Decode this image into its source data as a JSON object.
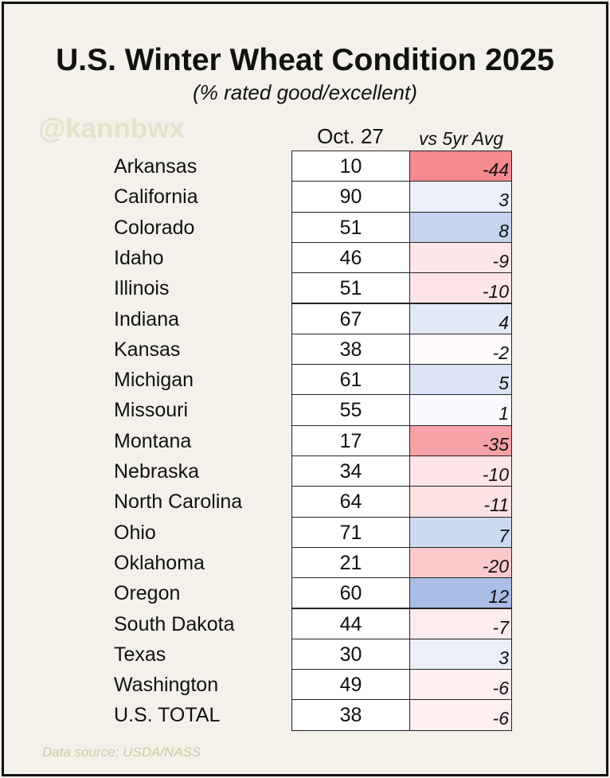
{
  "chart_data": {
    "type": "table",
    "title": "U.S. Winter Wheat Condition 2025",
    "subtitle": "(% rated good/excellent)",
    "columns": [
      "Oct. 27",
      "vs 5yr Avg"
    ],
    "rows": [
      {
        "state": "Arkansas",
        "value": "10",
        "diff": "-44"
      },
      {
        "state": "California",
        "value": "90",
        "diff": "3"
      },
      {
        "state": "Colorado",
        "value": "51",
        "diff": "8"
      },
      {
        "state": "Idaho",
        "value": "46",
        "diff": "-9"
      },
      {
        "state": "Illinois",
        "value": "51",
        "diff": "-10"
      },
      {
        "state": "Indiana",
        "value": "67",
        "diff": "4"
      },
      {
        "state": "Kansas",
        "value": "38",
        "diff": "-2"
      },
      {
        "state": "Michigan",
        "value": "61",
        "diff": "5"
      },
      {
        "state": "Missouri",
        "value": "55",
        "diff": "1"
      },
      {
        "state": "Montana",
        "value": "17",
        "diff": "-35"
      },
      {
        "state": "Nebraska",
        "value": "34",
        "diff": "-10"
      },
      {
        "state": "North Carolina",
        "value": "64",
        "diff": "-11"
      },
      {
        "state": "Ohio",
        "value": "71",
        "diff": "7"
      },
      {
        "state": "Oklahoma",
        "value": "21",
        "diff": "-20"
      },
      {
        "state": "Oregon",
        "value": "60",
        "diff": "12"
      },
      {
        "state": "South Dakota",
        "value": "44",
        "diff": "-7"
      },
      {
        "state": "Texas",
        "value": "30",
        "diff": "3"
      },
      {
        "state": "Washington",
        "value": "49",
        "diff": "-6"
      },
      {
        "state": "U.S. TOTAL",
        "value": "38",
        "diff": "-6"
      }
    ],
    "color_scale": {
      "negative": "#f58a8f",
      "positive": "#a9bde6",
      "neutral": "#ffffff"
    }
  },
  "watermark": "@kannbwx",
  "source": "Data source: USDA/NASS"
}
